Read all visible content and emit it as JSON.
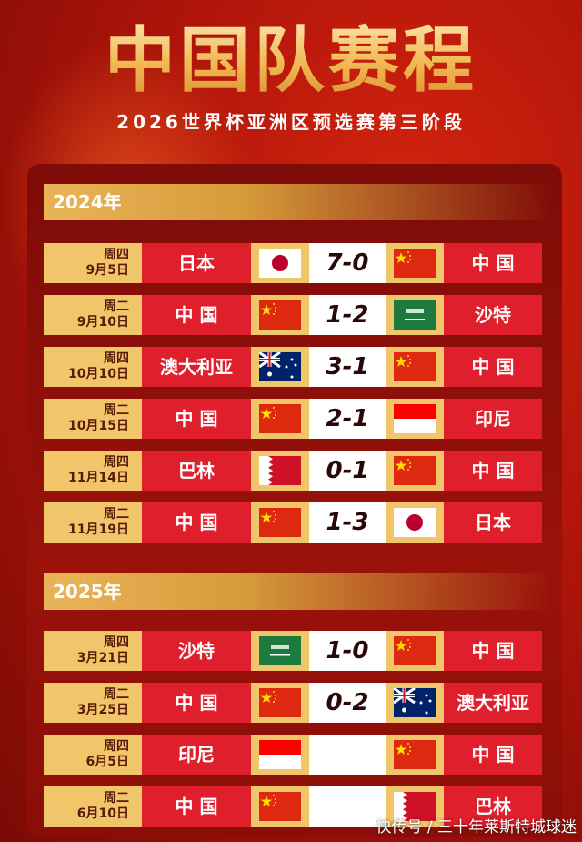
{
  "title": "中国队赛程",
  "subtitle": "2026世界杯亚洲区预选赛第三阶段",
  "sections": [
    {
      "year": "2024年",
      "matches": [
        {
          "weekday": "周四",
          "date": "9月5日",
          "home": "日本",
          "home_flag": "japan",
          "score": "7-0",
          "away_flag": "china",
          "away": "中 国"
        },
        {
          "weekday": "周二",
          "date": "9月10日",
          "home": "中 国",
          "home_flag": "china",
          "score": "1-2",
          "away_flag": "saudi",
          "away": "沙特"
        },
        {
          "weekday": "周四",
          "date": "10月10日",
          "home": "澳大利亚",
          "home_flag": "australia",
          "score": "3-1",
          "away_flag": "china",
          "away": "中 国"
        },
        {
          "weekday": "周二",
          "date": "10月15日",
          "home": "中 国",
          "home_flag": "china",
          "score": "2-1",
          "away_flag": "indonesia",
          "away": "印尼"
        },
        {
          "weekday": "周四",
          "date": "11月14日",
          "home": "巴林",
          "home_flag": "bahrain",
          "score": "0-1",
          "away_flag": "china",
          "away": "中 国"
        },
        {
          "weekday": "周二",
          "date": "11月19日",
          "home": "中 国",
          "home_flag": "china",
          "score": "1-3",
          "away_flag": "japan",
          "away": "日本"
        }
      ]
    },
    {
      "year": "2025年",
      "matches": [
        {
          "weekday": "周四",
          "date": "3月21日",
          "home": "沙特",
          "home_flag": "saudi",
          "score": "1-0",
          "away_flag": "china",
          "away": "中 国"
        },
        {
          "weekday": "周二",
          "date": "3月25日",
          "home": "中 国",
          "home_flag": "china",
          "score": "0-2",
          "away_flag": "australia",
          "away": "澳大利亚"
        },
        {
          "weekday": "周四",
          "date": "6月5日",
          "home": "印尼",
          "home_flag": "indonesia",
          "score": "",
          "away_flag": "china",
          "away": "中 国"
        },
        {
          "weekday": "周二",
          "date": "6月10日",
          "home": "中 国",
          "home_flag": "china",
          "score": "",
          "away_flag": "bahrain",
          "away": "巴林"
        }
      ]
    }
  ],
  "watermark": "快传号 / 三十年莱斯特城球迷"
}
